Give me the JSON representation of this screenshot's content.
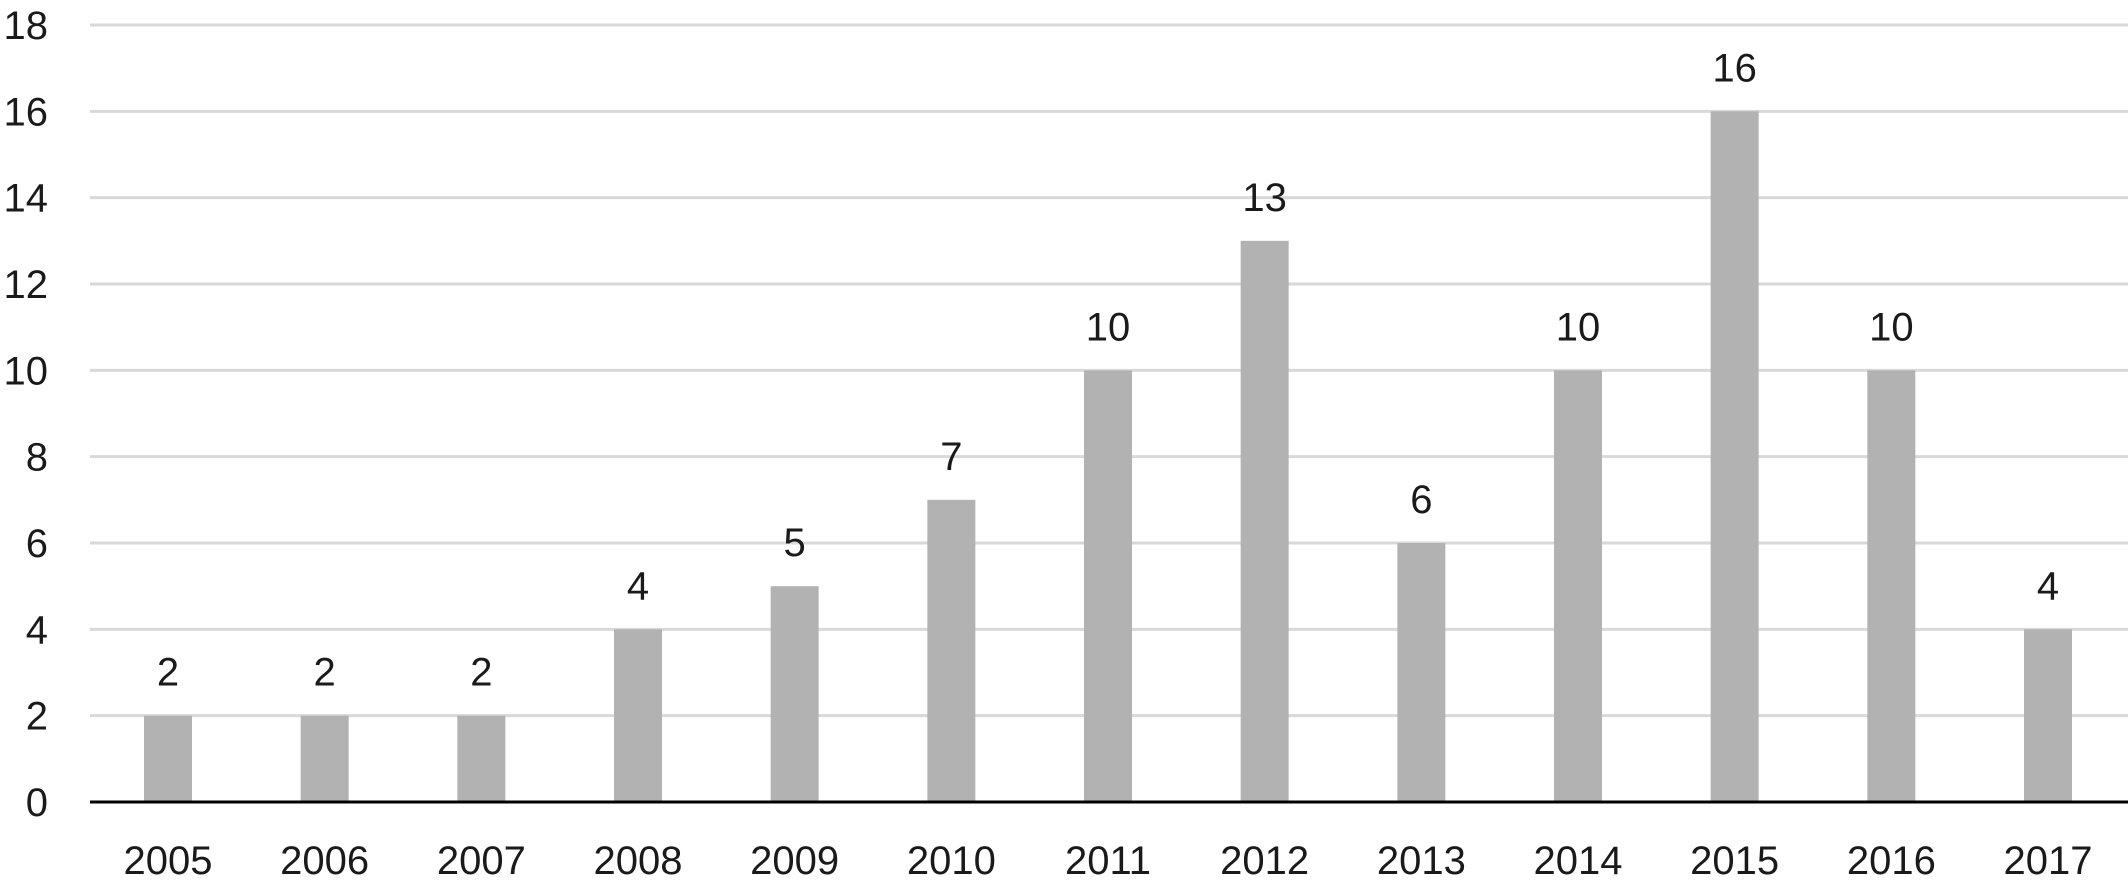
{
  "chart_data": {
    "type": "bar",
    "title": "",
    "xlabel": "",
    "ylabel": "",
    "categories": [
      "2005",
      "2006",
      "2007",
      "2008",
      "2009",
      "2010",
      "2011",
      "2012",
      "2013",
      "2014",
      "2015",
      "2016",
      "2017"
    ],
    "values": [
      2,
      2,
      2,
      4,
      5,
      7,
      10,
      13,
      6,
      10,
      16,
      10,
      4
    ],
    "ylim": [
      0,
      18
    ],
    "yticks": [
      0,
      2,
      4,
      6,
      8,
      10,
      12,
      14,
      16,
      18
    ],
    "grid": true,
    "legend": "none",
    "data_labels": true,
    "colors": {
      "bar": "#b2b2b2",
      "grid": "#d9d9d9",
      "axis": "#000000",
      "text": "#1a1a1a"
    }
  }
}
